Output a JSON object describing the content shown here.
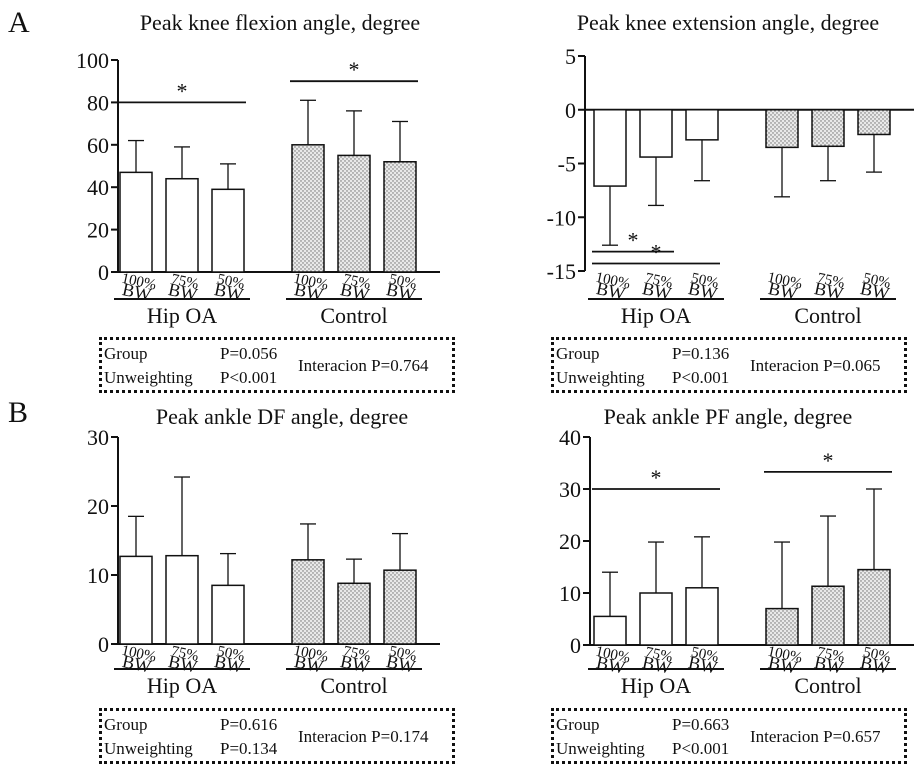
{
  "figure": {
    "panel_letters": [
      "A",
      "B"
    ],
    "colors": {
      "axis": "#111111",
      "bar_edge": "#111111",
      "hip_oa_fill": "#ffffff",
      "control_fill": "#e9e9e9",
      "control_dots": "#6b6b6b"
    }
  },
  "chart_data": [
    {
      "type": "bar",
      "title": "Peak knee flexion angle, degree",
      "ylim": [
        0,
        100
      ],
      "yticks": [
        0,
        20,
        40,
        60,
        80,
        100
      ],
      "categories": [
        "100%\nBW",
        "75%\nBW",
        "50%\nBW"
      ],
      "series": [
        {
          "name": "Hip OA",
          "values": [
            47,
            44,
            39
          ],
          "errors": [
            15,
            15,
            12
          ],
          "error_dir": "up"
        },
        {
          "name": "Control",
          "values": [
            60,
            55,
            52
          ],
          "errors": [
            21,
            21,
            19
          ],
          "error_dir": "up"
        }
      ],
      "significance": [
        {
          "group": 0,
          "from": 0,
          "to": 2,
          "y": 80,
          "label": "*"
        },
        {
          "group": 1,
          "from": 0,
          "to": 2,
          "y": 90,
          "label": "*"
        }
      ],
      "stats": {
        "group": "Group",
        "group_p": "P=0.056",
        "unweighting": "Unweighting",
        "unweighting_p": "P<0.001",
        "interaction": "Interacion P=0.764"
      },
      "grid": false
    },
    {
      "type": "bar",
      "title": "Peak knee extension angle, degree",
      "ylim": [
        -15,
        5
      ],
      "yticks": [
        -15,
        -10,
        -5,
        0,
        5
      ],
      "categories": [
        "100%\nBW",
        "75%\nBW",
        "50%\nBW"
      ],
      "series": [
        {
          "name": "Hip OA",
          "values": [
            -7.1,
            -4.4,
            -2.8
          ],
          "errors": [
            5.5,
            4.5,
            3.8
          ],
          "error_dir": "down"
        },
        {
          "name": "Control",
          "values": [
            -3.5,
            -3.4,
            -2.3
          ],
          "errors": [
            4.6,
            3.2,
            3.5
          ],
          "error_dir": "down"
        }
      ],
      "significance": [
        {
          "group": 0,
          "from": 0,
          "to": 1,
          "y": -13.2,
          "label": "*"
        },
        {
          "group": 0,
          "from": 0,
          "to": 2,
          "y": -14.3,
          "label": "*"
        }
      ],
      "stats": {
        "group": "Group",
        "group_p": "P=0.136",
        "unweighting": "Unweighting",
        "unweighting_p": "P<0.001",
        "interaction": "Interacion P=0.065"
      },
      "grid": false
    },
    {
      "type": "bar",
      "title": "Peak ankle DF angle, degree",
      "ylim": [
        0,
        30
      ],
      "yticks": [
        0,
        10,
        20,
        30
      ],
      "categories": [
        "100%\nBW",
        "75%\nBW",
        "50%\nBW"
      ],
      "series": [
        {
          "name": "Hip OA",
          "values": [
            12.7,
            12.8,
            8.5
          ],
          "errors": [
            5.8,
            11.4,
            4.6
          ],
          "error_dir": "up"
        },
        {
          "name": "Control",
          "values": [
            12.2,
            8.8,
            10.7
          ],
          "errors": [
            5.2,
            3.5,
            5.3
          ],
          "error_dir": "up"
        }
      ],
      "significance": [],
      "stats": {
        "group": "Group",
        "group_p": "P=0.616",
        "unweighting": "Unweighting",
        "unweighting_p": "P=0.134",
        "interaction": "Interacion P=0.174"
      },
      "grid": false
    },
    {
      "type": "bar",
      "title": "Peak ankle PF angle, degree",
      "ylim": [
        0,
        40
      ],
      "yticks": [
        0,
        10,
        20,
        30,
        40
      ],
      "categories": [
        "100%\nBW",
        "75%\nBW",
        "50%\nBW"
      ],
      "series": [
        {
          "name": "Hip OA",
          "values": [
            5.5,
            10,
            11
          ],
          "errors": [
            8.5,
            9.8,
            9.8
          ],
          "error_dir": "up"
        },
        {
          "name": "Control",
          "values": [
            7,
            11.3,
            14.5
          ],
          "errors": [
            12.8,
            13.5,
            15.5
          ],
          "error_dir": "up"
        }
      ],
      "significance": [
        {
          "group": 0,
          "from": 0,
          "to": 2,
          "y": 30,
          "label": "*"
        },
        {
          "group": 1,
          "from": 0,
          "to": 2,
          "y": 33.3,
          "label": "*"
        }
      ],
      "stats": {
        "group": "Group",
        "group_p": "P=0.663",
        "unweighting": "Unweighting",
        "unweighting_p": "P<0.001",
        "interaction": "Interacion P=0.657"
      },
      "grid": false
    }
  ]
}
